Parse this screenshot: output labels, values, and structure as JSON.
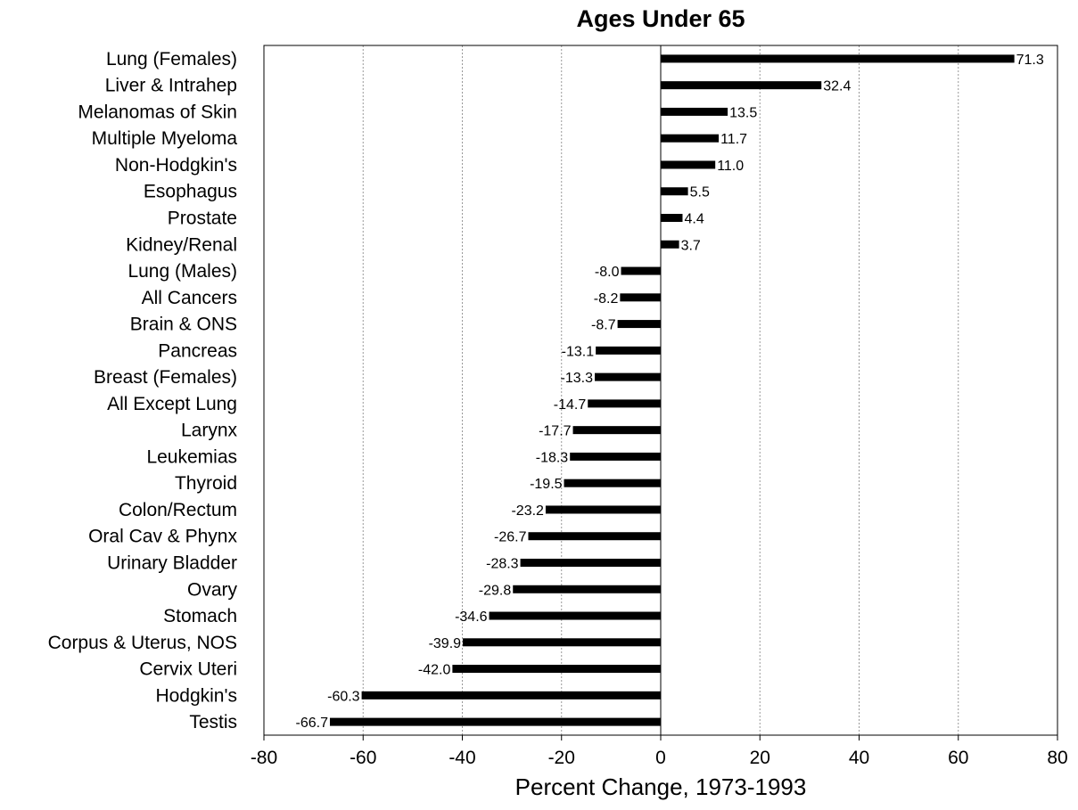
{
  "chart_data": {
    "type": "bar",
    "orientation": "horizontal",
    "title": "Ages Under 65",
    "xlabel": "Percent Change, 1973-1993",
    "ylabel": "",
    "xlim": [
      -80,
      80
    ],
    "xticks": [
      -80,
      -60,
      -40,
      -20,
      0,
      20,
      40,
      60,
      80
    ],
    "grid": "vertical dashed",
    "categories": [
      "Lung (Females)",
      "Liver & Intrahep",
      "Melanomas of Skin",
      "Multiple Myeloma",
      "Non-Hodgkin's",
      "Esophagus",
      "Prostate",
      "Kidney/Renal",
      "Lung (Males)",
      "All Cancers",
      "Brain & ONS",
      "Pancreas",
      "Breast (Females)",
      "All Except Lung",
      "Larynx",
      "Leukemias",
      "Thyroid",
      "Colon/Rectum",
      "Oral Cav & Phynx",
      "Urinary Bladder",
      "Ovary",
      "Stomach",
      "Corpus & Uterus, NOS",
      "Cervix Uteri",
      "Hodgkin's",
      "Testis"
    ],
    "values": [
      71.3,
      32.4,
      13.5,
      11.7,
      11.0,
      5.5,
      4.4,
      3.7,
      -8.0,
      -8.2,
      -8.7,
      -13.1,
      -13.3,
      -14.7,
      -17.7,
      -18.3,
      -19.5,
      -23.2,
      -26.7,
      -28.3,
      -29.8,
      -34.6,
      -39.9,
      -42.0,
      -60.3,
      -66.7
    ],
    "value_labels": [
      "71.3",
      "32.4",
      "13.5",
      "11.7",
      "11.0",
      "5.5",
      "4.4",
      "3.7",
      "-8.0",
      "-8.2",
      "-8.7",
      "-13.1",
      "-13.3",
      "-14.7",
      "-17.7",
      "-18.3",
      "-19.5",
      "-23.2",
      "-26.7",
      "-28.3",
      "-29.8",
      "-34.6",
      "-39.9",
      "-42.0",
      "-60.3",
      "-66.7"
    ],
    "bar_color": "#000000"
  }
}
